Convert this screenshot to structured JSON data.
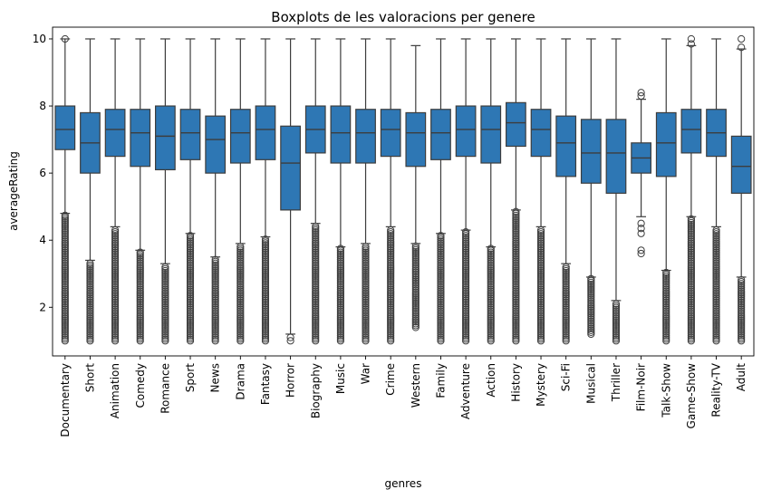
{
  "chart_data": {
    "type": "box",
    "title": "Boxplots de les valoracions per genere",
    "xlabel": "genres",
    "ylabel": "averageRating",
    "ylim": [
      0.55,
      10.35
    ],
    "yticks": [
      2,
      4,
      6,
      8,
      10
    ],
    "grid": false,
    "legend": "none",
    "color": "#2e77b4",
    "line_color": "#3d3d3d",
    "categories": [
      "Documentary",
      "Short",
      "Animation",
      "Comedy",
      "Romance",
      "Sport",
      "News",
      "Drama",
      "Fantasy",
      "Horror",
      "Biography",
      "Music",
      "War",
      "Crime",
      "Western",
      "Family",
      "Adventure",
      "Action",
      "History",
      "Mystery",
      "Sci-Fi",
      "Musical",
      "Thriller",
      "Film-Noir",
      "Talk-Show",
      "Game-Show",
      "Reality-TV",
      "Adult"
    ],
    "boxes": [
      {
        "q1": 6.7,
        "median": 7.3,
        "q3": 8.0,
        "whislo": 4.8,
        "whishi": 10.0,
        "fliers_low": [
          1.0,
          4.75
        ],
        "fliers_high": [
          10.0
        ]
      },
      {
        "q1": 6.0,
        "median": 6.9,
        "q3": 7.8,
        "whislo": 3.4,
        "whishi": 10.0,
        "fliers_low": [
          1.0,
          3.35
        ],
        "fliers_high": []
      },
      {
        "q1": 6.5,
        "median": 7.3,
        "q3": 7.9,
        "whislo": 4.4,
        "whishi": 10.0,
        "fliers_low": [
          1.0,
          4.35
        ],
        "fliers_high": []
      },
      {
        "q1": 6.2,
        "median": 7.2,
        "q3": 7.9,
        "whislo": 3.7,
        "whishi": 10.0,
        "fliers_low": [
          1.0,
          3.65
        ],
        "fliers_high": []
      },
      {
        "q1": 6.1,
        "median": 7.1,
        "q3": 8.0,
        "whislo": 3.3,
        "whishi": 10.0,
        "fliers_low": [
          1.0,
          3.25
        ],
        "fliers_high": []
      },
      {
        "q1": 6.4,
        "median": 7.2,
        "q3": 7.9,
        "whislo": 4.2,
        "whishi": 10.0,
        "fliers_low": [
          1.0,
          4.15
        ],
        "fliers_high": []
      },
      {
        "q1": 6.0,
        "median": 7.0,
        "q3": 7.7,
        "whislo": 3.5,
        "whishi": 10.0,
        "fliers_low": [
          1.0,
          3.45
        ],
        "fliers_high": []
      },
      {
        "q1": 6.3,
        "median": 7.2,
        "q3": 7.9,
        "whislo": 3.9,
        "whishi": 10.0,
        "fliers_low": [
          1.0,
          3.85
        ],
        "fliers_high": []
      },
      {
        "q1": 6.4,
        "median": 7.3,
        "q3": 8.0,
        "whislo": 4.1,
        "whishi": 10.0,
        "fliers_low": [
          1.0,
          4.05
        ],
        "fliers_high": []
      },
      {
        "q1": 4.9,
        "median": 6.3,
        "q3": 7.4,
        "whislo": 1.2,
        "whishi": 10.0,
        "fliers_low": [
          1.0,
          1.1
        ],
        "fliers_high": []
      },
      {
        "q1": 6.6,
        "median": 7.3,
        "q3": 8.0,
        "whislo": 4.5,
        "whishi": 10.0,
        "fliers_low": [
          1.0,
          4.45
        ],
        "fliers_high": []
      },
      {
        "q1": 6.3,
        "median": 7.2,
        "q3": 8.0,
        "whislo": 3.8,
        "whishi": 10.0,
        "fliers_low": [
          1.0,
          3.75
        ],
        "fliers_high": []
      },
      {
        "q1": 6.3,
        "median": 7.2,
        "q3": 7.9,
        "whislo": 3.9,
        "whishi": 10.0,
        "fliers_low": [
          1.0,
          3.85
        ],
        "fliers_high": []
      },
      {
        "q1": 6.5,
        "median": 7.3,
        "q3": 7.9,
        "whislo": 4.4,
        "whishi": 10.0,
        "fliers_low": [
          1.0,
          4.35
        ],
        "fliers_high": []
      },
      {
        "q1": 6.2,
        "median": 7.2,
        "q3": 7.8,
        "whislo": 3.9,
        "whishi": 9.8,
        "fliers_low": [
          1.4,
          3.85
        ],
        "fliers_high": []
      },
      {
        "q1": 6.4,
        "median": 7.2,
        "q3": 7.9,
        "whislo": 4.2,
        "whishi": 10.0,
        "fliers_low": [
          1.0,
          4.15
        ],
        "fliers_high": []
      },
      {
        "q1": 6.5,
        "median": 7.3,
        "q3": 8.0,
        "whislo": 4.3,
        "whishi": 10.0,
        "fliers_low": [
          1.0,
          4.25
        ],
        "fliers_high": []
      },
      {
        "q1": 6.3,
        "median": 7.3,
        "q3": 8.0,
        "whislo": 3.8,
        "whishi": 10.0,
        "fliers_low": [
          1.0,
          3.75
        ],
        "fliers_high": []
      },
      {
        "q1": 6.8,
        "median": 7.5,
        "q3": 8.1,
        "whislo": 4.9,
        "whishi": 10.0,
        "fliers_low": [
          1.0,
          4.85
        ],
        "fliers_high": []
      },
      {
        "q1": 6.5,
        "median": 7.3,
        "q3": 7.9,
        "whislo": 4.4,
        "whishi": 10.0,
        "fliers_low": [
          1.0,
          4.35
        ],
        "fliers_high": []
      },
      {
        "q1": 5.9,
        "median": 6.9,
        "q3": 7.7,
        "whislo": 3.3,
        "whishi": 10.0,
        "fliers_low": [
          1.0,
          3.25
        ],
        "fliers_high": []
      },
      {
        "q1": 5.7,
        "median": 6.6,
        "q3": 7.6,
        "whislo": 2.9,
        "whishi": 10.0,
        "fliers_low": [
          1.2,
          2.85
        ],
        "fliers_high": []
      },
      {
        "q1": 5.4,
        "median": 6.6,
        "q3": 7.6,
        "whislo": 2.2,
        "whishi": 10.0,
        "fliers_low": [
          1.0,
          2.15
        ],
        "fliers_high": []
      },
      {
        "q1": 6.0,
        "median": 6.45,
        "q3": 6.9,
        "whislo": 4.7,
        "whishi": 8.2,
        "fliers_low": [
          3.6,
          3.7,
          4.2,
          4.35,
          4.5
        ],
        "fliers_high": [
          8.3,
          8.4
        ]
      },
      {
        "q1": 5.9,
        "median": 6.9,
        "q3": 7.8,
        "whislo": 3.1,
        "whishi": 10.0,
        "fliers_low": [
          1.0,
          3.05
        ],
        "fliers_high": []
      },
      {
        "q1": 6.6,
        "median": 7.3,
        "q3": 7.9,
        "whislo": 4.7,
        "whishi": 9.8,
        "fliers_low": [
          1.0,
          4.65
        ],
        "fliers_high": [
          9.85,
          10.0
        ]
      },
      {
        "q1": 6.5,
        "median": 7.2,
        "q3": 7.9,
        "whislo": 4.4,
        "whishi": 10.0,
        "fliers_low": [
          1.0,
          4.35
        ],
        "fliers_high": []
      },
      {
        "q1": 5.4,
        "median": 6.2,
        "q3": 7.1,
        "whislo": 2.9,
        "whishi": 9.7,
        "fliers_low": [
          1.0,
          2.85
        ],
        "fliers_high": [
          9.75,
          10.0
        ]
      }
    ]
  }
}
